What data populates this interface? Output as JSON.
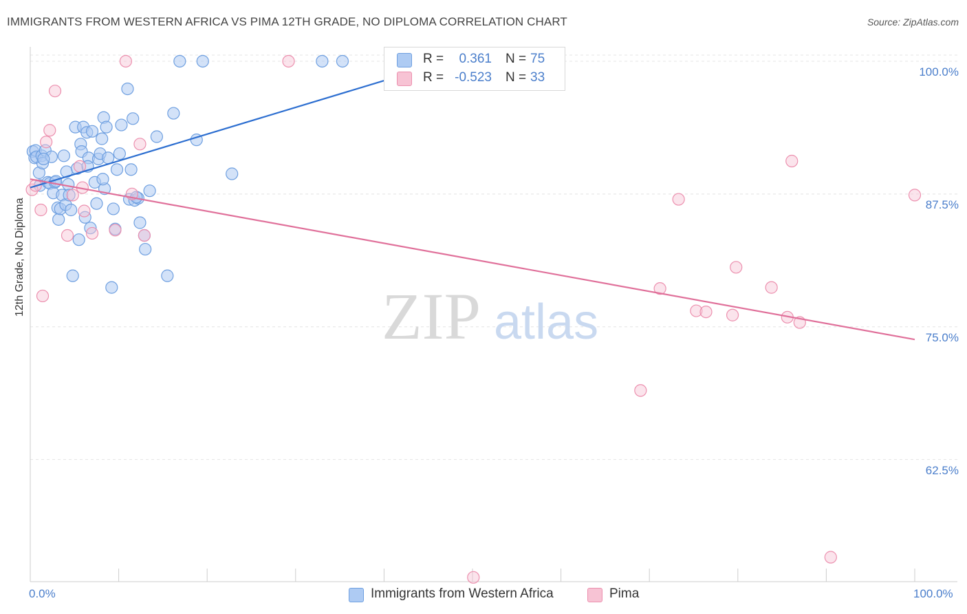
{
  "title": "IMMIGRANTS FROM WESTERN AFRICA VS PIMA 12TH GRADE, NO DIPLOMA CORRELATION CHART",
  "source": "Source: ZipAtlas.com",
  "watermark": {
    "zip": "ZIP",
    "atlas": "atlas"
  },
  "colors": {
    "blue_fill": "#aecbf3",
    "blue_stroke": "#6e9fe0",
    "blue_line": "#2c6ed0",
    "pink_fill": "#f7c3d4",
    "pink_stroke": "#ec8fae",
    "pink_line": "#e0709a",
    "tick_text": "#4a7ecb",
    "grid": "#e4e4e4"
  },
  "legend": {
    "rows": [
      {
        "r_label": "R =",
        "r_value": "0.361",
        "n_label": "N =",
        "n_value": "75"
      },
      {
        "r_label": "R =",
        "r_value": "-0.523",
        "n_label": "N =",
        "n_value": "33"
      }
    ]
  },
  "bottom_legend": [
    "Immigrants from Western Africa",
    "Pima"
  ],
  "chart_data": {
    "type": "scatter",
    "title": "IMMIGRANTS FROM WESTERN AFRICA VS PIMA 12TH GRADE, NO DIPLOMA CORRELATION CHART",
    "xlabel": "",
    "ylabel": "12th Grade, No Diploma",
    "xlim": [
      0,
      100
    ],
    "ylim": [
      51,
      101.1
    ],
    "y_ticks": [
      100,
      87.5,
      75,
      62.5
    ],
    "y_tick_labels": [
      "100.0%",
      "87.5%",
      "75.0%",
      "62.5%"
    ],
    "x_tick_labels": [
      "0.0%",
      "100.0%"
    ],
    "grid": true,
    "series": [
      {
        "name": "Immigrants from Western Africa",
        "R": 0.361,
        "N": 75,
        "trend": {
          "x": [
            0,
            40.5
          ],
          "y": [
            88.1,
            98.3
          ]
        },
        "points": [
          [
            0.3,
            91.5
          ],
          [
            0.5,
            90.9
          ],
          [
            0.6,
            91.6
          ],
          [
            0.7,
            91.0
          ],
          [
            1.0,
            89.5
          ],
          [
            1.1,
            88.3
          ],
          [
            1.3,
            91.1
          ],
          [
            1.4,
            90.4
          ],
          [
            1.7,
            91.6
          ],
          [
            2.0,
            88.6
          ],
          [
            2.2,
            88.5
          ],
          [
            2.4,
            91.0
          ],
          [
            2.6,
            87.6
          ],
          [
            2.8,
            88.6
          ],
          [
            3.1,
            86.2
          ],
          [
            3.2,
            85.1
          ],
          [
            3.4,
            86.1
          ],
          [
            3.6,
            87.4
          ],
          [
            3.8,
            91.1
          ],
          [
            4.0,
            86.5
          ],
          [
            4.1,
            89.6
          ],
          [
            4.3,
            88.4
          ],
          [
            4.4,
            87.4
          ],
          [
            4.6,
            86.0
          ],
          [
            4.8,
            79.8
          ],
          [
            5.1,
            93.8
          ],
          [
            5.3,
            89.9
          ],
          [
            5.5,
            83.2
          ],
          [
            5.7,
            92.2
          ],
          [
            5.8,
            91.5
          ],
          [
            6.0,
            93.8
          ],
          [
            6.2,
            85.3
          ],
          [
            6.4,
            93.3
          ],
          [
            6.6,
            90.9
          ],
          [
            6.8,
            84.3
          ],
          [
            7.0,
            93.4
          ],
          [
            7.3,
            88.6
          ],
          [
            7.5,
            86.6
          ],
          [
            7.7,
            90.8
          ],
          [
            7.9,
            91.3
          ],
          [
            8.1,
            92.7
          ],
          [
            8.3,
            94.7
          ],
          [
            8.4,
            88.0
          ],
          [
            8.6,
            93.8
          ],
          [
            8.8,
            90.9
          ],
          [
            9.2,
            78.7
          ],
          [
            9.4,
            86.1
          ],
          [
            9.6,
            84.2
          ],
          [
            9.8,
            89.8
          ],
          [
            10.1,
            91.3
          ],
          [
            10.3,
            94.0
          ],
          [
            11.0,
            97.4
          ],
          [
            11.2,
            87.0
          ],
          [
            11.4,
            89.8
          ],
          [
            11.6,
            94.6
          ],
          [
            11.8,
            86.9
          ],
          [
            12.2,
            87.1
          ],
          [
            12.4,
            84.8
          ],
          [
            12.9,
            83.6
          ],
          [
            13.0,
            82.3
          ],
          [
            13.5,
            87.8
          ],
          [
            14.3,
            92.9
          ],
          [
            15.5,
            79.8
          ],
          [
            16.2,
            95.1
          ],
          [
            16.9,
            100.0
          ],
          [
            18.8,
            92.6
          ],
          [
            19.5,
            100.0
          ],
          [
            22.8,
            89.4
          ],
          [
            33.0,
            100.0
          ],
          [
            35.3,
            100.0
          ],
          [
            1.5,
            90.8
          ],
          [
            2.9,
            88.7
          ],
          [
            6.5,
            90.1
          ],
          [
            12.0,
            87.2
          ],
          [
            8.2,
            88.9
          ]
        ]
      },
      {
        "name": "Pima",
        "R": -0.523,
        "N": 33,
        "trend": {
          "x": [
            0,
            100
          ],
          "y": [
            88.9,
            73.8
          ]
        },
        "points": [
          [
            0.2,
            87.9
          ],
          [
            0.6,
            88.3
          ],
          [
            1.2,
            86.0
          ],
          [
            1.4,
            77.9
          ],
          [
            1.8,
            92.4
          ],
          [
            2.2,
            93.5
          ],
          [
            2.8,
            97.2
          ],
          [
            4.2,
            83.6
          ],
          [
            4.8,
            87.4
          ],
          [
            5.6,
            90.1
          ],
          [
            5.9,
            88.1
          ],
          [
            6.1,
            85.9
          ],
          [
            7.0,
            83.8
          ],
          [
            9.6,
            84.1
          ],
          [
            10.8,
            100.0
          ],
          [
            11.5,
            87.5
          ],
          [
            12.4,
            92.2
          ],
          [
            12.9,
            83.6
          ],
          [
            29.2,
            100.0
          ],
          [
            50.1,
            51.4
          ],
          [
            69.0,
            69.0
          ],
          [
            71.2,
            78.6
          ],
          [
            73.3,
            87.0
          ],
          [
            75.3,
            76.5
          ],
          [
            76.4,
            76.4
          ],
          [
            79.4,
            76.1
          ],
          [
            79.8,
            80.6
          ],
          [
            83.8,
            78.7
          ],
          [
            85.6,
            75.9
          ],
          [
            86.1,
            90.6
          ],
          [
            87.0,
            75.4
          ],
          [
            90.5,
            53.3
          ],
          [
            100.0,
            87.4
          ]
        ]
      }
    ]
  }
}
